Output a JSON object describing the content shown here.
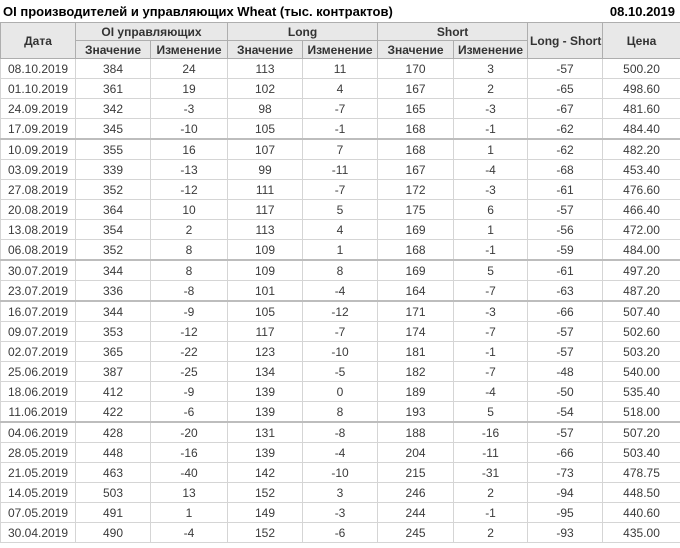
{
  "title": "OI производителей и управляющих Wheat (тыс. контрактов)",
  "report_date": "08.10.2019",
  "colors": {
    "positive_change": "#008000",
    "negative_change": "#cc0000",
    "header_bg": "#e8e8e8"
  },
  "table": {
    "headers": {
      "date": "Дата",
      "oi": "OI управляющих",
      "long": "Long",
      "short": "Short",
      "long_short": "Long - Short",
      "price": "Цена",
      "value": "Значение",
      "change": "Изменение"
    },
    "rows": [
      {
        "date": "08.10.2019",
        "oi": "384",
        "oi_chg": "24",
        "long": "113",
        "long_chg": "11",
        "short": "170",
        "short_chg": "3",
        "ls": "-57",
        "price": "500.20"
      },
      {
        "date": "01.10.2019",
        "oi": "361",
        "oi_chg": "19",
        "long": "102",
        "long_chg": "4",
        "short": "167",
        "short_chg": "2",
        "ls": "-65",
        "price": "498.60"
      },
      {
        "date": "24.09.2019",
        "oi": "342",
        "oi_chg": "-3",
        "long": "98",
        "long_chg": "-7",
        "short": "165",
        "short_chg": "-3",
        "ls": "-67",
        "price": "481.60"
      },
      {
        "date": "17.09.2019",
        "oi": "345",
        "oi_chg": "-10",
        "long": "105",
        "long_chg": "-1",
        "short": "168",
        "short_chg": "-1",
        "ls": "-62",
        "price": "484.40"
      },
      {
        "date": "10.09.2019",
        "oi": "355",
        "oi_chg": "16",
        "long": "107",
        "long_chg": "7",
        "short": "168",
        "short_chg": "1",
        "ls": "-62",
        "price": "482.20"
      },
      {
        "date": "03.09.2019",
        "oi": "339",
        "oi_chg": "-13",
        "long": "99",
        "long_chg": "-11",
        "short": "167",
        "short_chg": "-4",
        "ls": "-68",
        "price": "453.40"
      },
      {
        "date": "27.08.2019",
        "oi": "352",
        "oi_chg": "-12",
        "long": "111",
        "long_chg": "-7",
        "short": "172",
        "short_chg": "-3",
        "ls": "-61",
        "price": "476.60"
      },
      {
        "date": "20.08.2019",
        "oi": "364",
        "oi_chg": "10",
        "long": "117",
        "long_chg": "5",
        "short": "175",
        "short_chg": "6",
        "ls": "-57",
        "price": "466.40"
      },
      {
        "date": "13.08.2019",
        "oi": "354",
        "oi_chg": "2",
        "long": "113",
        "long_chg": "4",
        "short": "169",
        "short_chg": "1",
        "ls": "-56",
        "price": "472.00"
      },
      {
        "date": "06.08.2019",
        "oi": "352",
        "oi_chg": "8",
        "long": "109",
        "long_chg": "1",
        "short": "168",
        "short_chg": "-1",
        "ls": "-59",
        "price": "484.00"
      },
      {
        "date": "30.07.2019",
        "oi": "344",
        "oi_chg": "8",
        "long": "109",
        "long_chg": "8",
        "short": "169",
        "short_chg": "5",
        "ls": "-61",
        "price": "497.20"
      },
      {
        "date": "23.07.2019",
        "oi": "336",
        "oi_chg": "-8",
        "long": "101",
        "long_chg": "-4",
        "short": "164",
        "short_chg": "-7",
        "ls": "-63",
        "price": "487.20"
      },
      {
        "date": "16.07.2019",
        "oi": "344",
        "oi_chg": "-9",
        "long": "105",
        "long_chg": "-12",
        "short": "171",
        "short_chg": "-3",
        "ls": "-66",
        "price": "507.40"
      },
      {
        "date": "09.07.2019",
        "oi": "353",
        "oi_chg": "-12",
        "long": "117",
        "long_chg": "-7",
        "short": "174",
        "short_chg": "-7",
        "ls": "-57",
        "price": "502.60"
      },
      {
        "date": "02.07.2019",
        "oi": "365",
        "oi_chg": "-22",
        "long": "123",
        "long_chg": "-10",
        "short": "181",
        "short_chg": "-1",
        "ls": "-57",
        "price": "503.20"
      },
      {
        "date": "25.06.2019",
        "oi": "387",
        "oi_chg": "-25",
        "long": "134",
        "long_chg": "-5",
        "short": "182",
        "short_chg": "-7",
        "ls": "-48",
        "price": "540.00"
      },
      {
        "date": "18.06.2019",
        "oi": "412",
        "oi_chg": "-9",
        "long": "139",
        "long_chg": "0",
        "short": "189",
        "short_chg": "-4",
        "ls": "-50",
        "price": "535.40"
      },
      {
        "date": "11.06.2019",
        "oi": "422",
        "oi_chg": "-6",
        "long": "139",
        "long_chg": "8",
        "short": "193",
        "short_chg": "5",
        "ls": "-54",
        "price": "518.00"
      },
      {
        "date": "04.06.2019",
        "oi": "428",
        "oi_chg": "-20",
        "long": "131",
        "long_chg": "-8",
        "short": "188",
        "short_chg": "-16",
        "ls": "-57",
        "price": "507.20"
      },
      {
        "date": "28.05.2019",
        "oi": "448",
        "oi_chg": "-16",
        "long": "139",
        "long_chg": "-4",
        "short": "204",
        "short_chg": "-11",
        "ls": "-66",
        "price": "503.40"
      },
      {
        "date": "21.05.2019",
        "oi": "463",
        "oi_chg": "-40",
        "long": "142",
        "long_chg": "-10",
        "short": "215",
        "short_chg": "-31",
        "ls": "-73",
        "price": "478.75"
      },
      {
        "date": "14.05.2019",
        "oi": "503",
        "oi_chg": "13",
        "long": "152",
        "long_chg": "3",
        "short": "246",
        "short_chg": "2",
        "ls": "-94",
        "price": "448.50"
      },
      {
        "date": "07.05.2019",
        "oi": "491",
        "oi_chg": "1",
        "long": "149",
        "long_chg": "-3",
        "short": "244",
        "short_chg": "-1",
        "ls": "-95",
        "price": "440.60"
      },
      {
        "date": "30.04.2019",
        "oi": "490",
        "oi_chg": "-4",
        "long": "152",
        "long_chg": "-6",
        "short": "245",
        "short_chg": "2",
        "ls": "-93",
        "price": "435.00"
      }
    ]
  }
}
